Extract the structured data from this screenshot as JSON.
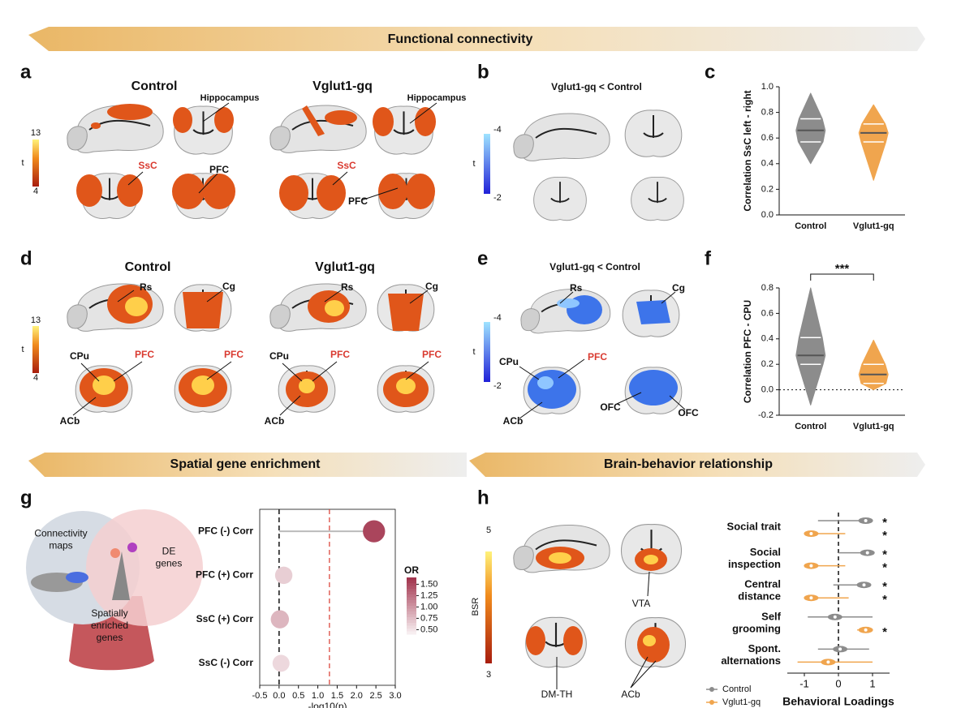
{
  "figure": {
    "banners": [
      "Functional connectivity",
      "Spatial gene enrichment",
      "Brain-behavior relationship"
    ],
    "panel_letters": [
      "a",
      "b",
      "c",
      "d",
      "e",
      "f",
      "g",
      "h"
    ],
    "a": {
      "groups": [
        "Control",
        "Vglut1-gq"
      ],
      "labels": [
        "Hippocampus",
        "SsC",
        "PFC",
        "Hippocampus",
        "SsC",
        "PFC"
      ],
      "colorbar_label": "t",
      "colorbar_ticks": [
        13,
        4
      ]
    },
    "b": {
      "title": "Vglut1-gq < Control",
      "colorbar_label": "t",
      "colorbar_ticks": [
        -4,
        -2
      ]
    },
    "d": {
      "groups": [
        "Control",
        "Vglut1-gq"
      ],
      "labels": [
        "Rs",
        "Cg",
        "CPu",
        "PFC",
        "ACb",
        "PFC",
        "Rs",
        "Cg",
        "CPu",
        "PFC",
        "ACb",
        "PFC"
      ],
      "colorbar_label": "t",
      "colorbar_ticks": [
        13,
        4
      ]
    },
    "e": {
      "title": "Vglut1-gq < Control",
      "labels": [
        "Rs",
        "Cg",
        "CPu",
        "PFC",
        "ACb",
        "OFC",
        "OFC"
      ],
      "colorbar_label": "t",
      "colorbar_ticks": [
        -4,
        -2
      ]
    },
    "g": {
      "venn": [
        "Connectivity\nmaps",
        "DE\ngenes",
        "Spatially\nenriched\ngenes"
      ]
    },
    "h": {
      "labels": [
        "VTA",
        "DM-TH",
        "ACb"
      ],
      "colorbar_label": "BSR",
      "colorbar_ticks": [
        5,
        3
      ]
    }
  },
  "chart_data": [
    {
      "type": "violin",
      "ylabel": "Correlation SsC left - right",
      "categories": [
        "Control",
        "Vglut1-gq"
      ],
      "colors": [
        "#8c8c8c",
        "#f0a54e"
      ],
      "min": [
        0.4,
        0.27
      ],
      "q1": [
        0.57,
        0.57
      ],
      "median": [
        0.66,
        0.64
      ],
      "q3": [
        0.75,
        0.71
      ],
      "max": [
        0.95,
        0.86
      ],
      "ylim": [
        0,
        1
      ],
      "yticks": [
        {
          "value": 0,
          "label": "0.0"
        },
        0.2,
        0.4,
        0.6,
        0.8,
        {
          "value": 1,
          "label": "1.0"
        }
      ]
    },
    {
      "type": "violin",
      "ylabel": "Correlation PFC - CPU",
      "categories": [
        "Control",
        "Vglut1-gq"
      ],
      "colors": [
        "#8c8c8c",
        "#f0a54e"
      ],
      "min": [
        -0.12,
        0.0
      ],
      "q1": [
        0.2,
        0.05
      ],
      "median": [
        0.27,
        0.12
      ],
      "q3": [
        0.41,
        0.2
      ],
      "max": [
        0.8,
        0.39
      ],
      "annotation": "***",
      "reference_line": 0,
      "ylim": [
        -0.2,
        0.8
      ],
      "yticks": [
        -0.2,
        {
          "value": 0,
          "label": "0.0"
        },
        0.2,
        0.4,
        0.6,
        0.8
      ]
    },
    {
      "type": "lollipop",
      "categories": [
        "PFC (-) Corr",
        "PFC (+) Corr",
        "SsC (+) Corr",
        "SsC (-) Corr"
      ],
      "values": [
        2.45,
        0.12,
        0.02,
        0.05
      ],
      "odds_ratio": [
        1.55,
        0.62,
        0.78,
        0.55
      ],
      "threshold": 1.3,
      "xlabel": "-log10(p)",
      "xlim": [
        -0.5,
        3.0
      ],
      "xticks": [
        -0.5,
        {
          "value": 0,
          "label": "0.0"
        },
        0.5,
        {
          "value": 1,
          "label": "1.0"
        },
        1.5,
        {
          "value": 2,
          "label": "2.0"
        },
        2.5,
        {
          "value": 3,
          "label": "3.0"
        }
      ],
      "colorbar_title": "OR",
      "colorbar_lim": [
        0.4,
        1.65
      ],
      "colormap": [
        "#f7eef0",
        "#a3364f"
      ],
      "colorbar_ticks": [
        {
          "value": 1.5,
          "label": "1.50"
        },
        {
          "value": 1.25,
          "label": "1.25"
        },
        {
          "value": 1.0,
          "label": "1.00"
        },
        {
          "value": 0.75,
          "label": "0.75"
        },
        {
          "value": 0.5,
          "label": "0.50"
        }
      ]
    },
    {
      "type": "dot",
      "categories": [
        "Social trait",
        "Social\ninspection",
        "Central\ndistance",
        "Self\ngrooming",
        "Spont.\nalternations"
      ],
      "xlabel": "Behavioral Loadings",
      "xlim": [
        -1.5,
        1.5
      ],
      "xticks": [
        -1,
        0,
        1
      ],
      "legend": "lower left",
      "series": [
        {
          "name": "Control",
          "color": "#8c8c8c",
          "values": [
            0.8,
            0.85,
            0.75,
            -0.1,
            0.05
          ],
          "ci": [
            [
              -0.6,
              0.95
            ],
            [
              0.0,
              0.95
            ],
            [
              -0.15,
              0.95
            ],
            [
              -0.9,
              1.0
            ],
            [
              -0.6,
              0.9
            ]
          ],
          "significance": [
            "*",
            "*",
            "*",
            null,
            null
          ]
        },
        {
          "name": "Vglut1-gq",
          "color": "#f0a54e",
          "values": [
            -0.8,
            -0.8,
            -0.8,
            0.8,
            -0.3
          ],
          "ci": [
            [
              -1.0,
              0.2
            ],
            [
              -1.0,
              0.2
            ],
            [
              -1.0,
              0.3
            ],
            [
              0.55,
              0.95
            ],
            [
              -1.2,
              1.0
            ]
          ],
          "significance": [
            "*",
            "*",
            "*",
            "*",
            null
          ]
        }
      ]
    }
  ]
}
